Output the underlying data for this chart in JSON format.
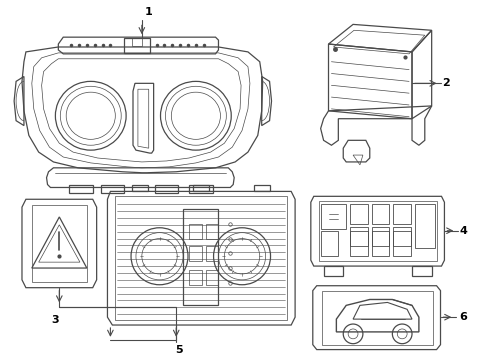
{
  "bg_color": "#ffffff",
  "line_color": "#4a4a4a",
  "lw_main": 0.9,
  "lw_thin": 0.5,
  "lw_thick": 1.2
}
